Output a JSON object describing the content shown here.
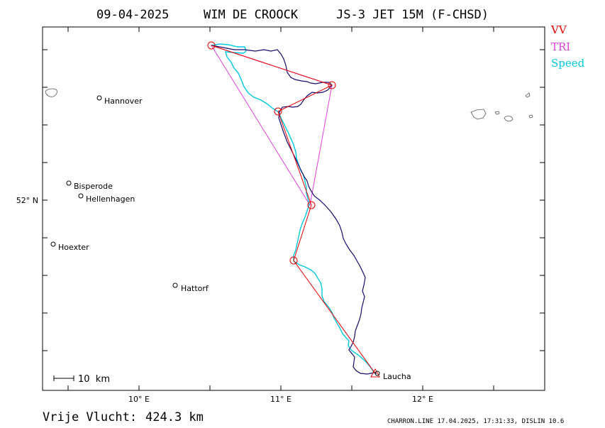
{
  "header": {
    "date": "09-04-2025",
    "pilot": "WIM DE CROOCK",
    "glider": "JS-3 JET 15M (F-CHSD)"
  },
  "legend": [
    {
      "label": "VV",
      "color": "#e60000"
    },
    {
      "label": "TRI",
      "color": "#e040e0"
    },
    {
      "label": "Speed",
      "color": "#00c8e0"
    }
  ],
  "colors": {
    "track": "#1a0a6e",
    "vv": "#e60000",
    "tri": "#e040e0",
    "speed": "#00c8e0",
    "frame": "#000000"
  },
  "axes": {
    "x_ticks": [
      "10° E",
      "11° E",
      "12° E"
    ],
    "y_ticks": [
      "52° N"
    ]
  },
  "places": [
    {
      "name": "Hannover"
    },
    {
      "name": "Bisperode"
    },
    {
      "name": "Hellenhagen"
    },
    {
      "name": "Hoexter"
    },
    {
      "name": "Hattorf"
    },
    {
      "name": "Laucha"
    }
  ],
  "scale_bar": {
    "label": "10  km"
  },
  "distance": {
    "label": "Vrije Vlucht:",
    "value": "424.3 km"
  },
  "footer": {
    "text": "CHARRON.LINE 17.04.2025, 17:31:33, DISLIN 10.6"
  }
}
